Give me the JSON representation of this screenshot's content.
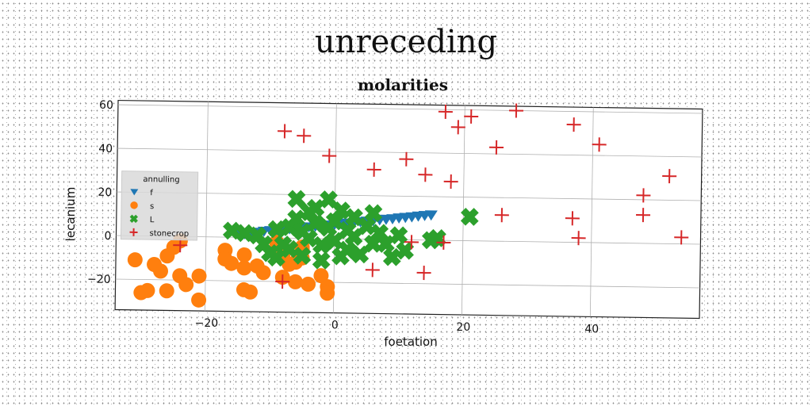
{
  "page": {
    "title": "unreceding"
  },
  "chart_data": {
    "type": "scatter",
    "title": "molarities",
    "xlabel": "foetation",
    "ylabel": "lecanium",
    "xlim": [
      -34,
      57
    ],
    "ylim": [
      -34,
      62
    ],
    "xticks": [
      -20,
      0,
      20,
      40
    ],
    "yticks": [
      -20,
      0,
      20,
      40,
      60
    ],
    "x_tick_labels": [
      "−20",
      "0",
      "20",
      "40"
    ],
    "y_tick_labels": [
      "−20",
      "0",
      "20",
      "40",
      "60"
    ],
    "grid": true,
    "legend": {
      "title": "annulling",
      "placement": "center-left"
    },
    "series": [
      {
        "name": "f",
        "marker": "triangle-down",
        "color": "#1f77b4",
        "points": [
          [
            -13,
            2
          ],
          [
            -12,
            2.5
          ],
          [
            -11,
            3
          ],
          [
            -10,
            3.3
          ],
          [
            -9,
            3.6
          ],
          [
            -8,
            4
          ],
          [
            -7,
            4.3
          ],
          [
            -6,
            4.6
          ],
          [
            -5,
            5
          ],
          [
            -4,
            5.3
          ],
          [
            -3,
            5.6
          ],
          [
            -2,
            6
          ],
          [
            -1,
            6.3
          ],
          [
            0,
            6.6
          ],
          [
            1,
            7
          ],
          [
            2,
            7.3
          ],
          [
            3,
            7.6
          ],
          [
            4,
            8
          ],
          [
            5,
            8.3
          ],
          [
            6,
            8.6
          ],
          [
            7,
            9
          ],
          [
            8,
            9.3
          ],
          [
            9,
            9.6
          ],
          [
            10,
            10
          ],
          [
            11,
            10.3
          ],
          [
            12,
            10.6
          ],
          [
            13,
            11
          ],
          [
            14,
            11.3
          ],
          [
            15,
            11.6
          ],
          [
            -15,
            1.4
          ],
          [
            -14,
            1.7
          ]
        ]
      },
      {
        "name": "s",
        "marker": "circle",
        "color": "#ff7f0e",
        "points": [
          [
            -24,
            -2
          ],
          [
            -25,
            -5
          ],
          [
            -26,
            -9
          ],
          [
            -31,
            -11
          ],
          [
            -28,
            -13
          ],
          [
            -27,
            -16
          ],
          [
            -24,
            -18
          ],
          [
            -21,
            -18
          ],
          [
            -23,
            -22
          ],
          [
            -26,
            -25
          ],
          [
            -29,
            -25
          ],
          [
            -30,
            -26
          ],
          [
            -21,
            -29
          ],
          [
            -17,
            -6
          ],
          [
            -17,
            -10
          ],
          [
            -16,
            -12
          ],
          [
            -14,
            -8
          ],
          [
            -14,
            -14
          ],
          [
            -12,
            -13
          ],
          [
            -11,
            -16
          ],
          [
            -14,
            -24
          ],
          [
            -13,
            -25
          ],
          [
            -9,
            -2
          ],
          [
            -8,
            -8
          ],
          [
            -7,
            -12
          ],
          [
            -6,
            -11
          ],
          [
            -5,
            -9
          ],
          [
            -5,
            -5
          ],
          [
            -8,
            -18
          ],
          [
            -6,
            -20
          ],
          [
            -4,
            -21
          ],
          [
            -2,
            -17
          ],
          [
            -1,
            -22
          ],
          [
            -1,
            -25
          ],
          [
            -5,
            -4
          ]
        ]
      },
      {
        "name": "L",
        "marker": "x",
        "color": "#2ca02c",
        "points": [
          [
            -16,
            3
          ],
          [
            -14,
            2
          ],
          [
            -12,
            1
          ],
          [
            -11,
            -3
          ],
          [
            -10,
            -7
          ],
          [
            -9,
            -9
          ],
          [
            -8,
            -3
          ],
          [
            -7,
            5
          ],
          [
            -6,
            9
          ],
          [
            -6,
            18
          ],
          [
            -5,
            3
          ],
          [
            -5,
            -8
          ],
          [
            -4,
            0
          ],
          [
            -3,
            7
          ],
          [
            -3,
            14
          ],
          [
            -2,
            -3
          ],
          [
            -2,
            -10
          ],
          [
            -1,
            5
          ],
          [
            -1,
            18
          ],
          [
            0,
            8
          ],
          [
            0,
            -1
          ],
          [
            1,
            13
          ],
          [
            1,
            -8
          ],
          [
            2,
            4
          ],
          [
            2,
            -5
          ],
          [
            3,
            10
          ],
          [
            3,
            1
          ],
          [
            4,
            -7
          ],
          [
            5,
            6
          ],
          [
            6,
            12
          ],
          [
            6,
            -2
          ],
          [
            7,
            3
          ],
          [
            8,
            -2
          ],
          [
            9,
            -8
          ],
          [
            10,
            2
          ],
          [
            11,
            -5
          ],
          [
            -4,
            12
          ],
          [
            -7,
            -5
          ],
          [
            -9,
            4
          ],
          [
            15,
            0
          ],
          [
            16,
            1
          ],
          [
            21,
            11
          ]
        ]
      },
      {
        "name": "stonecrop",
        "marker": "plus",
        "color": "#d62728",
        "points": [
          [
            -8,
            49
          ],
          [
            -5,
            47
          ],
          [
            -1,
            38
          ],
          [
            6,
            32
          ],
          [
            11,
            37
          ],
          [
            14,
            30
          ],
          [
            17,
            59
          ],
          [
            19,
            52
          ],
          [
            21,
            57
          ],
          [
            18,
            27
          ],
          [
            25,
            43
          ],
          [
            28,
            60
          ],
          [
            37,
            54
          ],
          [
            41,
            45
          ],
          [
            52,
            31
          ],
          [
            48,
            22
          ],
          [
            48,
            13
          ],
          [
            54,
            3
          ],
          [
            37,
            11
          ],
          [
            38,
            2
          ],
          [
            26,
            12
          ],
          [
            12,
            -1
          ],
          [
            17,
            -1
          ],
          [
            6,
            -14
          ],
          [
            14,
            -15
          ],
          [
            -8,
            -20
          ],
          [
            -24,
            -4
          ]
        ]
      }
    ]
  }
}
